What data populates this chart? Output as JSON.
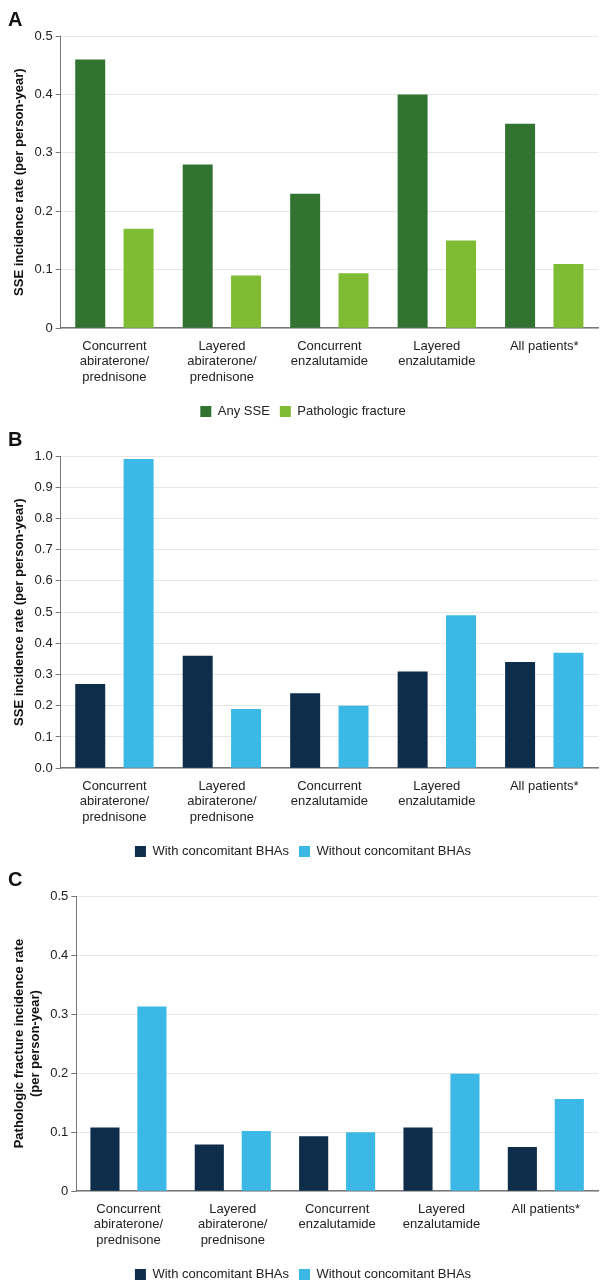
{
  "chart_data": [
    {
      "type": "bar",
      "title": "A",
      "ylabel": "SSE incidence rate (per person-year)",
      "categories": [
        "Concurrent\nabiraterone/\nprednisone",
        "Layered\nabiraterone/\nprednisone",
        "Concurrent\nenzalutamide",
        "Layered\nenzalutamide",
        "All patients*"
      ],
      "series": [
        {
          "name": "Any SSE",
          "color": "#327332",
          "values": [
            0.46,
            0.28,
            0.23,
            0.4,
            0.35
          ]
        },
        {
          "name": "Pathologic fracture",
          "color": "#80bb34",
          "values": [
            0.17,
            0.09,
            0.094,
            0.15,
            0.11
          ]
        }
      ],
      "ylim": [
        0,
        0.5
      ],
      "yticks": [
        0,
        0.1,
        0.2,
        0.3,
        0.4,
        0.5
      ],
      "grid": "y",
      "legend": "bottom"
    },
    {
      "type": "bar",
      "title": "B",
      "ylabel": "SSE incidence rate (per person-year)",
      "categories": [
        "Concurrent\nabiraterone/\nprednisone",
        "Layered\nabiraterone/\nprednisone",
        "Concurrent\nenzalutamide",
        "Layered\nenzalutamide",
        "All patients*"
      ],
      "series": [
        {
          "name": "With concomitant BHAs",
          "color": "#0d2d4a",
          "values": [
            0.27,
            0.36,
            0.24,
            0.31,
            0.34
          ]
        },
        {
          "name": "Without concomitant BHAs",
          "color": "#3bb8e6",
          "values": [
            0.99,
            0.19,
            0.2,
            0.49,
            0.37
          ]
        }
      ],
      "ylim": [
        0,
        1
      ],
      "yticks": [
        {
          "value": 0,
          "label": "0.0"
        },
        0.1,
        0.2,
        0.3,
        0.4,
        0.5,
        0.6,
        0.7,
        0.8,
        0.9,
        {
          "value": 1,
          "label": "1.0"
        }
      ],
      "grid": "y",
      "legend": "bottom"
    },
    {
      "type": "bar",
      "title": "C",
      "ylabel": "Pathologic fracture incidence rate\n(per person-year)",
      "categories": [
        "Concurrent\nabiraterone/\nprednisone",
        "Layered\nabiraterone/\nprednisone",
        "Concurrent\nenzalutamide",
        "Layered\nenzalutamide",
        "All patients*"
      ],
      "series": [
        {
          "name": "With concomitant BHAs",
          "color": "#0d2d4a",
          "values": [
            0.108,
            0.079,
            0.093,
            0.108,
            0.075
          ]
        },
        {
          "name": "Without concomitant BHAs",
          "color": "#3bb8e6",
          "values": [
            0.313,
            0.102,
            0.1,
            0.199,
            0.156
          ]
        }
      ],
      "ylim": [
        0,
        0.5
      ],
      "yticks": [
        0,
        0.1,
        0.2,
        0.3,
        0.4,
        0.5
      ],
      "grid": "y",
      "legend": "bottom"
    }
  ]
}
